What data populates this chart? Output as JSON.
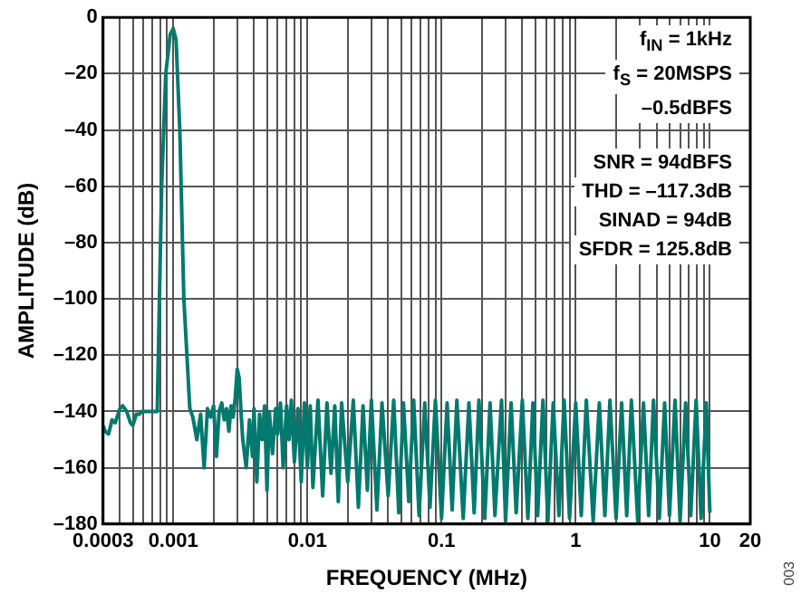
{
  "chart_data": {
    "type": "line",
    "xlabel": "FREQUENCY (MHz)",
    "ylabel": "AMPLITUDE (dB)",
    "log": "x",
    "grid": true,
    "legend": false,
    "marker": "none",
    "line_style": "solid",
    "xlim": [
      0.0003,
      20
    ],
    "ylim": [
      -180,
      0
    ],
    "xticks": [
      0.0003,
      {
        "value": 0.0004,
        "label": null
      },
      {
        "value": 0.0005,
        "label": null
      },
      {
        "value": 0.0006,
        "label": null
      },
      {
        "value": 0.0007,
        "label": null
      },
      {
        "value": 0.0008,
        "label": null
      },
      {
        "value": 0.0009,
        "label": null
      },
      0.001,
      {
        "value": 0.002,
        "label": null
      },
      {
        "value": 0.003,
        "label": null
      },
      {
        "value": 0.004,
        "label": null
      },
      {
        "value": 0.005,
        "label": null
      },
      {
        "value": 0.006,
        "label": null
      },
      {
        "value": 0.007,
        "label": null
      },
      {
        "value": 0.008,
        "label": null
      },
      {
        "value": 0.009,
        "label": null
      },
      0.01,
      {
        "value": 0.02,
        "label": null
      },
      {
        "value": 0.03,
        "label": null
      },
      {
        "value": 0.04,
        "label": null
      },
      {
        "value": 0.05,
        "label": null
      },
      {
        "value": 0.06,
        "label": null
      },
      {
        "value": 0.07,
        "label": null
      },
      {
        "value": 0.08,
        "label": null
      },
      {
        "value": 0.09,
        "label": null
      },
      0.1,
      {
        "value": 0.2,
        "label": null
      },
      {
        "value": 0.3,
        "label": null
      },
      {
        "value": 0.4,
        "label": null
      },
      {
        "value": 0.5,
        "label": null
      },
      {
        "value": 0.6,
        "label": null
      },
      {
        "value": 0.7,
        "label": null
      },
      {
        "value": 0.8,
        "label": null
      },
      {
        "value": 0.9,
        "label": null
      },
      1,
      {
        "value": 2,
        "label": null
      },
      {
        "value": 3,
        "label": null
      },
      {
        "value": 4,
        "label": null
      },
      {
        "value": 5,
        "label": null
      },
      {
        "value": 6,
        "label": null
      },
      {
        "value": 7,
        "label": null
      },
      {
        "value": 8,
        "label": null
      },
      {
        "value": 9,
        "label": null
      },
      10,
      20
    ],
    "yticks": [
      {
        "value": -180,
        "label": "–180"
      },
      {
        "value": -160,
        "label": "–160"
      },
      {
        "value": -140,
        "label": "–140"
      },
      {
        "value": -120,
        "label": "–120"
      },
      {
        "value": -100,
        "label": "–100"
      },
      {
        "value": -80,
        "label": "–80"
      },
      {
        "value": -60,
        "label": "–60"
      },
      {
        "value": -40,
        "label": "–40"
      },
      {
        "value": -20,
        "label": "–20"
      },
      0
    ],
    "annotations": [
      "f$_{IN}$ = 1kHz",
      "f$_{S}$ = 20MSPS",
      "–0.5dBFS",
      "SNR = 94dBFS",
      "THD = –117.3dB",
      "SINAD = 94dB",
      "SFDR = 125.8dB",
      "003"
    ],
    "series": [
      {
        "color": "#007a6e",
        "x": [
          0.0003,
          0.00031,
          0.00033,
          0.00035,
          0.00037,
          0.0004,
          0.00042,
          0.00045,
          0.00048,
          0.0005,
          0.00053,
          0.00056,
          0.00058,
          0.00076,
          0.00082,
          0.00088,
          0.00095,
          0.001,
          0.00105,
          0.00112,
          0.0012,
          0.00133,
          0.0014,
          0.0015,
          0.0016,
          0.0017,
          0.0018,
          0.0019,
          0.002,
          0.0021,
          0.0022,
          0.0023,
          0.0024,
          0.0025,
          0.0026,
          0.0027,
          0.0028,
          0.0029,
          0.003,
          0.0031,
          0.0032,
          0.0033,
          0.0035,
          0.0037,
          0.0039,
          0.004,
          0.0042,
          0.0044,
          0.0046,
          0.0048,
          0.005,
          0.0052,
          0.0055,
          0.0058,
          0.006,
          0.0063,
          0.0066,
          0.007,
          0.0073,
          0.0076,
          0.008,
          0.0085,
          0.009,
          0.0095,
          0.01,
          0.0105,
          0.011,
          0.012,
          0.013,
          0.014,
          0.015,
          0.016,
          0.017,
          0.018,
          0.02,
          0.022,
          0.024,
          0.026,
          0.028,
          0.03,
          0.033,
          0.036,
          0.04,
          0.044,
          0.048,
          0.052,
          0.057,
          0.062,
          0.068,
          0.075,
          0.082,
          0.09,
          0.1,
          0.11,
          0.12,
          0.13,
          0.145,
          0.16,
          0.175,
          0.19,
          0.21,
          0.23,
          0.25,
          0.28,
          0.3,
          0.33,
          0.36,
          0.4,
          0.44,
          0.48,
          0.52,
          0.57,
          0.62,
          0.68,
          0.75,
          0.82,
          0.9,
          1,
          1.1,
          1.2,
          1.35,
          1.5,
          1.65,
          1.8,
          2,
          2.2,
          2.4,
          2.6,
          2.9,
          3.2,
          3.5,
          3.8,
          4.2,
          4.6,
          5,
          5.5,
          6,
          6.6,
          7.2,
          7.9,
          8.6,
          9.4,
          10
        ],
        "values": [
          -145,
          -147,
          -148,
          -143,
          -144,
          -139,
          -138,
          -140,
          -144,
          -145,
          -141,
          -141,
          -140,
          -140,
          -60,
          -20,
          -6,
          -4,
          -8,
          -40,
          -100,
          -139,
          -142,
          -150,
          -141,
          -160,
          -139,
          -142,
          -138,
          -156,
          -140,
          -137,
          -143,
          -139,
          -147,
          -138,
          -142,
          -135,
          -125,
          -128,
          -140,
          -150,
          -160,
          -143,
          -156,
          -139,
          -165,
          -141,
          -150,
          -138,
          -168,
          -140,
          -155,
          -139,
          -148,
          -137,
          -160,
          -138,
          -150,
          -136,
          -158,
          -139,
          -165,
          -137,
          -160,
          -138,
          -167,
          -136,
          -170,
          -137,
          -162,
          -138,
          -172,
          -137,
          -165,
          -136,
          -174,
          -138,
          -168,
          -136,
          -175,
          -137,
          -170,
          -136,
          -176,
          -137,
          -172,
          -136,
          -177,
          -137,
          -174,
          -136,
          -178,
          -137,
          -175,
          -136,
          -178,
          -137,
          -176,
          -136,
          -178,
          -137,
          -177,
          -136,
          -179,
          -137,
          -176,
          -136,
          -178,
          -137,
          -177,
          -136,
          -179,
          -137,
          -177,
          -136,
          -178,
          -137,
          -177,
          -136,
          -179,
          -137,
          -177,
          -136,
          -178,
          -137,
          -177,
          -136,
          -179,
          -137,
          -177,
          -136,
          -178,
          -137,
          -177,
          -136,
          -179,
          -137,
          -177,
          -136,
          -178,
          -137,
          -176
        ]
      }
    ]
  }
}
